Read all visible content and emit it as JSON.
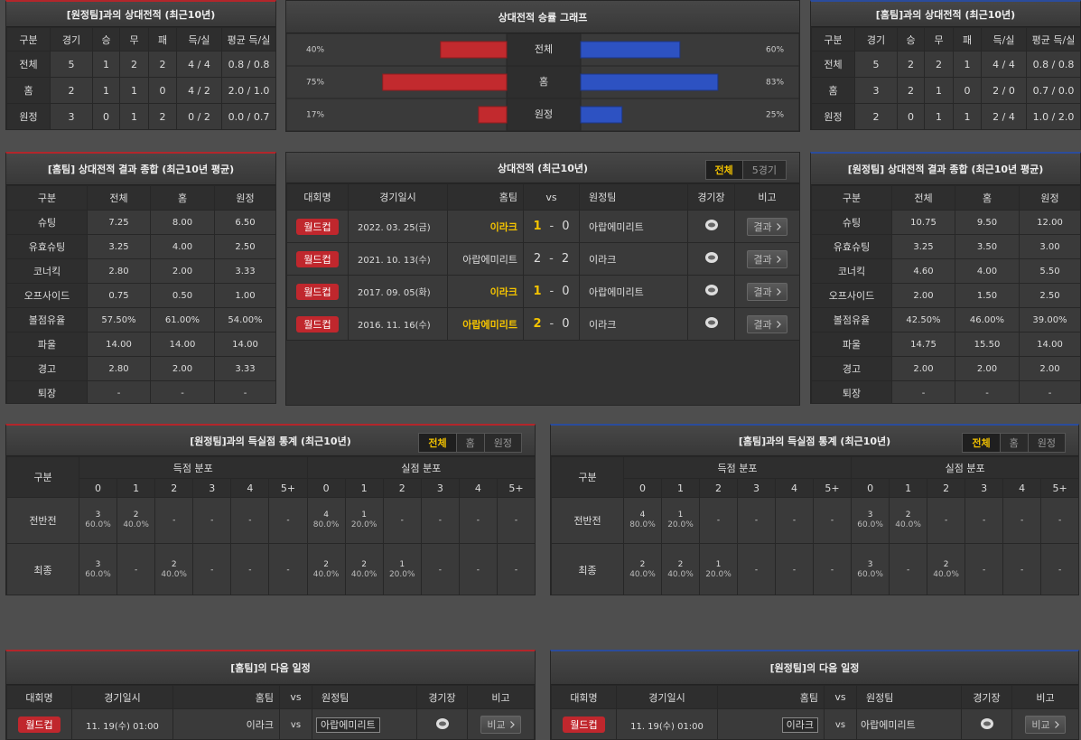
{
  "away_h2h": {
    "title": "[원정팀]과의 상대전적 (최근10년)",
    "header": [
      "구분",
      "경기",
      "승",
      "무",
      "패",
      "득/실",
      "평균 득/실"
    ],
    "rows": [
      [
        "전체",
        5,
        1,
        2,
        2,
        "4 / 4",
        "0.8 / 0.8"
      ],
      [
        "홈",
        2,
        1,
        1,
        0,
        "4 / 2",
        "2.0 / 1.0"
      ],
      [
        "원정",
        3,
        0,
        1,
        2,
        "0 / 2",
        "0.0 / 0.7"
      ]
    ]
  },
  "win_graph": {
    "title": "상대전적 승률 그래프",
    "rows": [
      {
        "label": "전체",
        "left": 40,
        "left_label": "40%",
        "right": 60,
        "right_label": "60%"
      },
      {
        "label": "홈",
        "left": 75,
        "left_label": "75%",
        "right": 83,
        "right_label": "83%"
      },
      {
        "label": "원정",
        "left": 17,
        "left_label": "17%",
        "right": 25,
        "right_label": "25%"
      }
    ]
  },
  "home_h2h": {
    "title": "[홈팀]과의 상대전적 (최근10년)",
    "header": [
      "구분",
      "경기",
      "승",
      "무",
      "패",
      "득/실",
      "평균 득/실"
    ],
    "rows": [
      [
        "전체",
        5,
        2,
        2,
        1,
        "4 / 4",
        "0.8 / 0.8"
      ],
      [
        "홈",
        3,
        2,
        1,
        0,
        "2 / 0",
        "0.7 / 0.0"
      ],
      [
        "원정",
        2,
        0,
        1,
        1,
        "2 / 4",
        "1.0 / 2.0"
      ]
    ]
  },
  "home_summary": {
    "title": "[홈팀] 상대전적 결과 종합 (최근10년 평균)",
    "header": [
      "구분",
      "전체",
      "홈",
      "원정"
    ],
    "rows": [
      [
        "슈팅",
        "7.25",
        "8.00",
        "6.50"
      ],
      [
        "유효슈팅",
        "3.25",
        "4.00",
        "2.50"
      ],
      [
        "코너킥",
        "2.80",
        "2.00",
        "3.33"
      ],
      [
        "오프사이드",
        "0.75",
        "0.50",
        "1.00"
      ],
      [
        "볼점유율",
        "57.50%",
        "61.00%",
        "54.00%"
      ],
      [
        "파울",
        "14.00",
        "14.00",
        "14.00"
      ],
      [
        "경고",
        "2.80",
        "2.00",
        "3.33"
      ],
      [
        "퇴장",
        "-",
        "-",
        "-"
      ]
    ]
  },
  "h2h_matches": {
    "title": "상대전적 (최근10년)",
    "tabs": [
      "전체",
      "5경기"
    ],
    "header": [
      "대회명",
      "경기일시",
      "홈팀",
      "vs",
      "원정팀",
      "경기장",
      "비고"
    ],
    "score_separator": "-",
    "matches": [
      {
        "league": "월드컵",
        "date": "2022. 03. 25(금)",
        "home": "이라크",
        "home_score": 1,
        "away_score": 0,
        "away": "아랍에미리트",
        "note": "결과"
      },
      {
        "league": "월드컵",
        "date": "2021. 10. 13(수)",
        "home": "아랍에미리트",
        "home_score": 2,
        "away_score": 2,
        "away": "이라크",
        "note": "결과"
      },
      {
        "league": "월드컵",
        "date": "2017. 09. 05(화)",
        "home": "이라크",
        "home_score": 1,
        "away_score": 0,
        "away": "아랍에미리트",
        "note": "결과"
      },
      {
        "league": "월드컵",
        "date": "2016. 11. 16(수)",
        "home": "아랍에미리트",
        "home_score": 2,
        "away_score": 0,
        "away": "이라크",
        "note": "결과"
      }
    ]
  },
  "away_summary": {
    "title": "[원정팀] 상대전적 결과 종합 (최근10년 평균)",
    "header": [
      "구분",
      "전체",
      "홈",
      "원정"
    ],
    "rows": [
      [
        "슈팅",
        "10.75",
        "9.50",
        "12.00"
      ],
      [
        "유효슈팅",
        "3.25",
        "3.50",
        "3.00"
      ],
      [
        "코너킥",
        "4.60",
        "4.00",
        "5.50"
      ],
      [
        "오프사이드",
        "2.00",
        "1.50",
        "2.50"
      ],
      [
        "볼점유율",
        "42.50%",
        "46.00%",
        "39.00%"
      ],
      [
        "파울",
        "14.75",
        "15.50",
        "14.00"
      ],
      [
        "경고",
        "2.00",
        "2.00",
        "2.00"
      ],
      [
        "퇴장",
        "-",
        "-",
        "-"
      ]
    ]
  },
  "away_goals": {
    "title": "[원정팀]과의 득실점 통계 (최근10년)",
    "tabs": [
      "전체",
      "홈",
      "원정"
    ],
    "row_header": "구분",
    "scored_header": "득점 분포",
    "conceded_header": "실점 분포",
    "buckets": [
      0,
      1,
      2,
      3,
      4,
      "5+"
    ],
    "rows": [
      {
        "label": "전반전",
        "scored": [
          {
            "count": 3,
            "share": "60.0%"
          },
          {
            "count": 2,
            "share": "40.0%"
          },
          "-",
          "-",
          "-",
          "-"
        ],
        "conceded": [
          {
            "count": 4,
            "share": "80.0%"
          },
          {
            "count": 1,
            "share": "20.0%"
          },
          "-",
          "-",
          "-",
          "-"
        ]
      },
      {
        "label": "최종",
        "scored": [
          {
            "count": 3,
            "share": "60.0%"
          },
          "-",
          {
            "count": 2,
            "share": "40.0%"
          },
          "-",
          "-",
          "-"
        ],
        "conceded": [
          {
            "count": 2,
            "share": "40.0%"
          },
          {
            "count": 2,
            "share": "40.0%"
          },
          {
            "count": 1,
            "share": "20.0%"
          },
          "-",
          "-",
          "-"
        ]
      }
    ]
  },
  "home_goals": {
    "title": "[홈팀]과의 득실점 통계 (최근10년)",
    "tabs": [
      "전체",
      "홈",
      "원정"
    ],
    "row_header": "구분",
    "scored_header": "득점 분포",
    "conceded_header": "실점 분포",
    "buckets": [
      0,
      1,
      2,
      3,
      4,
      "5+"
    ],
    "rows": [
      {
        "label": "전반전",
        "scored": [
          {
            "count": 4,
            "share": "80.0%"
          },
          {
            "count": 1,
            "share": "20.0%"
          },
          "-",
          "-",
          "-",
          "-"
        ],
        "conceded": [
          {
            "count": 3,
            "share": "60.0%"
          },
          {
            "count": 2,
            "share": "40.0%"
          },
          "-",
          "-",
          "-",
          "-"
        ]
      },
      {
        "label": "최종",
        "scored": [
          {
            "count": 2,
            "share": "40.0%"
          },
          {
            "count": 2,
            "share": "40.0%"
          },
          {
            "count": 1,
            "share": "20.0%"
          },
          "-",
          "-",
          "-"
        ],
        "conceded": [
          {
            "count": 3,
            "share": "60.0%"
          },
          "-",
          {
            "count": 2,
            "share": "40.0%"
          },
          "-",
          "-",
          "-"
        ]
      }
    ]
  },
  "home_next": {
    "title": "[홈팀]의 다음 일정",
    "header": [
      "대회명",
      "경기일시",
      "홈팀",
      "vs",
      "원정팀",
      "경기장",
      "비고"
    ],
    "match": {
      "league": "월드컵",
      "date": "11. 19(수) 01:00",
      "home": "이라크",
      "vs": "vs",
      "away": "아랍에미리트",
      "note": "비교"
    }
  },
  "away_next": {
    "title": "[원정팀]의 다음 일정",
    "header": [
      "대회명",
      "경기일시",
      "홈팀",
      "vs",
      "원정팀",
      "경기장",
      "비고"
    ],
    "match": {
      "league": "월드컵",
      "date": "11. 19(수) 01:00",
      "home": "이라크",
      "vs": "vs",
      "away": "아랍에미리트",
      "note": "비교"
    }
  }
}
